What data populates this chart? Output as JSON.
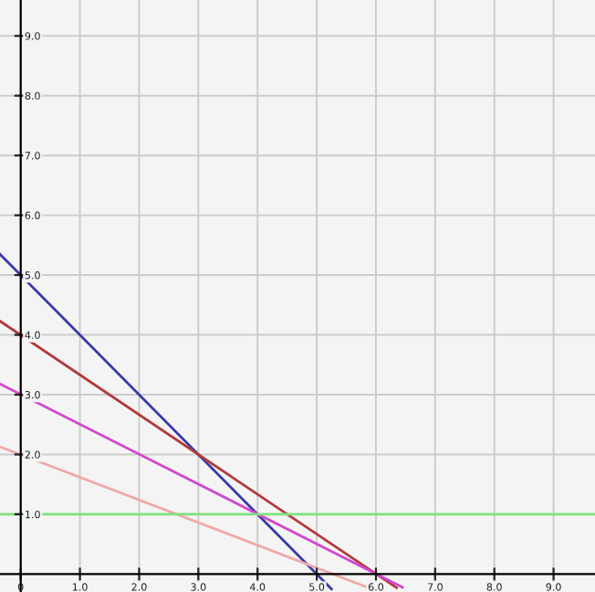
{
  "chart_data": {
    "type": "line",
    "series": [
      {
        "color": "#3a3aa8",
        "x": [
          -0.35,
          5.25
        ],
        "values": [
          5.35,
          -0.25
        ]
      },
      {
        "color": "#b03a3a",
        "x": [
          -0.35,
          6.35
        ],
        "values": [
          4.23,
          -0.23
        ]
      },
      {
        "color": "#d048d0",
        "x": [
          -0.35,
          6.45
        ],
        "values": [
          3.18,
          -0.22
        ]
      },
      {
        "color": "#f0a8a8",
        "x": [
          -0.35,
          5.85
        ],
        "values": [
          2.13,
          -0.22
        ]
      },
      {
        "color": "#80e080",
        "x": [
          -0.35,
          9.7
        ],
        "values": [
          1.0,
          1.0
        ]
      }
    ],
    "xlim": [
      -0.35,
      9.7
    ],
    "ylim": [
      -0.3,
      9.6
    ],
    "xticks": [
      0,
      {
        "value": 1,
        "label": "1.0"
      },
      {
        "value": 2,
        "label": "2.0"
      },
      {
        "value": 3,
        "label": "3.0"
      },
      {
        "value": 4,
        "label": "4.0"
      },
      {
        "value": 5,
        "label": "5.0"
      },
      {
        "value": 6,
        "label": "6.0"
      },
      {
        "value": 7,
        "label": "7.0"
      },
      {
        "value": 8,
        "label": "8.0"
      },
      {
        "value": 9,
        "label": "9.0"
      }
    ],
    "yticks": [
      {
        "value": 1,
        "label": "1.0"
      },
      {
        "value": 2,
        "label": "2.0"
      },
      {
        "value": 3,
        "label": "3.0"
      },
      {
        "value": 4,
        "label": "4.0"
      },
      {
        "value": 5,
        "label": "5.0"
      },
      {
        "value": 6,
        "label": "6.0"
      },
      {
        "value": 7,
        "label": "7.0"
      },
      {
        "value": 8,
        "label": "8.0"
      },
      {
        "value": 9,
        "label": "9.0"
      }
    ],
    "grid": true,
    "marker": "none",
    "line_style": "solid"
  }
}
